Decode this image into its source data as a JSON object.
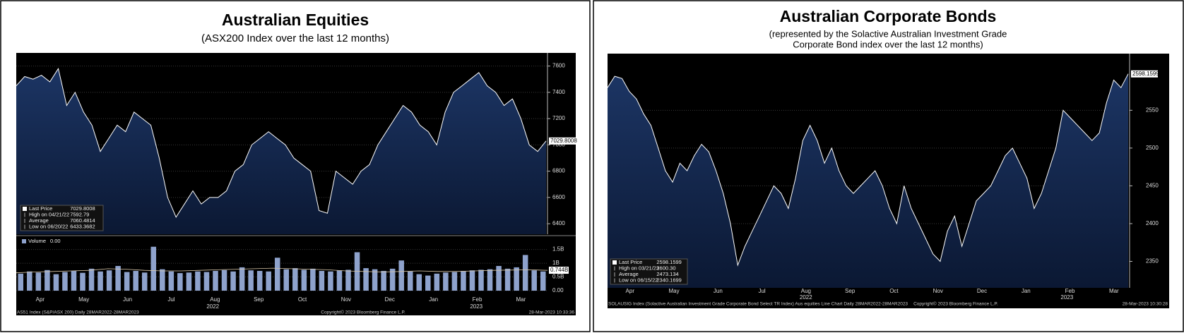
{
  "chart_data": [
    {
      "type": "line",
      "title": "Australian Equities",
      "subtitle": [
        "(ASX200 Index over the last 12 months)"
      ],
      "xtick_labels": [
        "Apr",
        "May",
        "Jun",
        "Jul",
        "Aug",
        "Sep",
        "Oct",
        "Nov",
        "Dec",
        "Jan",
        "Feb",
        "Mar"
      ],
      "year_labels": [
        "2022",
        "2023"
      ],
      "series": [
        {
          "name": "Last Price",
          "color": "#ffffff",
          "values": [
            7450,
            7520,
            7500,
            7530,
            7480,
            7580,
            7300,
            7400,
            7250,
            7150,
            6950,
            7050,
            7150,
            7100,
            7250,
            7200,
            7150,
            6900,
            6600,
            6450,
            6550,
            6650,
            6550,
            6600,
            6600,
            6650,
            6800,
            6850,
            7000,
            7050,
            7100,
            7050,
            7000,
            6900,
            6850,
            6800,
            6500,
            6480,
            6800,
            6750,
            6700,
            6800,
            6850,
            7000,
            7100,
            7200,
            7300,
            7250,
            7150,
            7100,
            7000,
            7250,
            7400,
            7450,
            7500,
            7550,
            7450,
            7400,
            7300,
            7350,
            7200,
            7000,
            6950,
            7030
          ]
        }
      ],
      "ylim": [
        6320,
        7700
      ],
      "yticks": [
        6400,
        6600,
        6800,
        7000,
        7200,
        7400,
        7600
      ],
      "last_price_tag": 7029.8008,
      "legend": [
        {
          "label": "Last Price",
          "value": 7029.8008
        },
        {
          "label": "High on 04/21/22",
          "value": 7592.79
        },
        {
          "label": "Average",
          "value": 7060.4814
        },
        {
          "label": "Low on 06/20/22",
          "value": 6433.3682
        }
      ],
      "volume": {
        "type": "bar",
        "name": "Volume",
        "legend_value": "0.00",
        "color": "#8ea2cc",
        "values": [
          0.62,
          0.7,
          0.66,
          0.75,
          0.6,
          0.68,
          0.72,
          0.65,
          0.8,
          0.7,
          0.74,
          0.9,
          0.68,
          0.72,
          0.66,
          1.6,
          0.78,
          0.7,
          0.64,
          0.66,
          0.7,
          0.68,
          0.72,
          0.75,
          0.7,
          0.85,
          0.74,
          0.72,
          0.7,
          1.2,
          0.78,
          0.82,
          0.76,
          0.8,
          0.72,
          0.7,
          0.74,
          0.76,
          1.4,
          0.82,
          0.78,
          0.72,
          0.8,
          1.1,
          0.7,
          0.6,
          0.55,
          0.62,
          0.66,
          0.68,
          0.72,
          0.74,
          0.76,
          0.78,
          0.9,
          0.8,
          0.85,
          1.3,
          0.74,
          0.7
        ],
        "average": {
          "color": "#d9c7a8",
          "values": [
            0.65,
            0.68,
            0.7,
            0.72,
            0.74,
            0.8,
            0.78,
            0.74,
            0.72,
            0.72,
            0.74,
            0.76,
            0.78,
            0.8,
            0.82,
            0.8,
            0.78,
            0.76,
            0.72,
            0.7,
            0.68,
            0.7,
            0.72,
            0.7,
            0.7,
            0.72,
            0.74,
            0.75,
            0.76,
            0.74
          ]
        },
        "ylim": [
          0,
          1.85
        ],
        "yticks": [
          {
            "value": 0,
            "label": "0.00"
          },
          {
            "value": 0.5,
            "label": "0.5B"
          },
          {
            "value": 1,
            "label": "1B"
          },
          {
            "value": 1.5,
            "label": "1.5B"
          }
        ],
        "last_tag": {
          "value": 0.744,
          "label": "0.744B"
        }
      },
      "footer": [
        "AS51 Index (S&P/ASX 200)  Daily 28MAR2022-28MAR2023",
        "Copyright© 2023 Bloomberg Finance L.P.",
        "28-Mar-2023 10:33:36"
      ]
    },
    {
      "type": "line",
      "title": "Australian Corporate Bonds",
      "subtitle": [
        "(represented by the Solactive Australian Investment Grade",
        "Corporate Bond index over the last 12 months)"
      ],
      "xtick_labels": [
        "Apr",
        "May",
        "Jun",
        "Jul",
        "Aug",
        "Sep",
        "Oct",
        "Nov",
        "Dec",
        "Jan",
        "Feb",
        "Mar"
      ],
      "year_labels": [
        "2022",
        "2023"
      ],
      "series": [
        {
          "name": "Last Price",
          "color": "#ffffff",
          "values": [
            2580,
            2595,
            2592,
            2575,
            2565,
            2545,
            2530,
            2500,
            2470,
            2455,
            2480,
            2470,
            2490,
            2505,
            2495,
            2470,
            2440,
            2400,
            2345,
            2370,
            2390,
            2410,
            2430,
            2450,
            2440,
            2420,
            2460,
            2510,
            2530,
            2510,
            2480,
            2500,
            2470,
            2450,
            2440,
            2450,
            2460,
            2470,
            2450,
            2420,
            2400,
            2450,
            2420,
            2400,
            2380,
            2360,
            2350,
            2390,
            2410,
            2370,
            2400,
            2430,
            2440,
            2450,
            2470,
            2490,
            2500,
            2480,
            2460,
            2420,
            2440,
            2470,
            2500,
            2550,
            2540,
            2530,
            2520,
            2510,
            2520,
            2560,
            2590,
            2580,
            2598.1599
          ]
        }
      ],
      "ylim": [
        2315,
        2625
      ],
      "yticks": [
        2350,
        2400,
        2450,
        2500,
        2550
      ],
      "last_price_tag": 2598.1599,
      "legend": [
        {
          "label": "Last Price",
          "value": 2598.1599
        },
        {
          "label": "High on 03/21/23",
          "value": {
            "value": 2600.3,
            "label": "2600.30"
          }
        },
        {
          "label": "Average",
          "value": 2473.134
        },
        {
          "label": "Low on 06/15/22",
          "value": 2340.1699
        }
      ],
      "footer": [
        "SOLAUSIG Index (Solactive Australian Investment Grade Corporate Bond Select TR Index) Aus equities Line Chart  Daily 28MAR2022-28MAR2023",
        "Copyright© 2023 Bloomberg Finance L.P.",
        "28-Mar-2023 10:30:28"
      ]
    }
  ]
}
